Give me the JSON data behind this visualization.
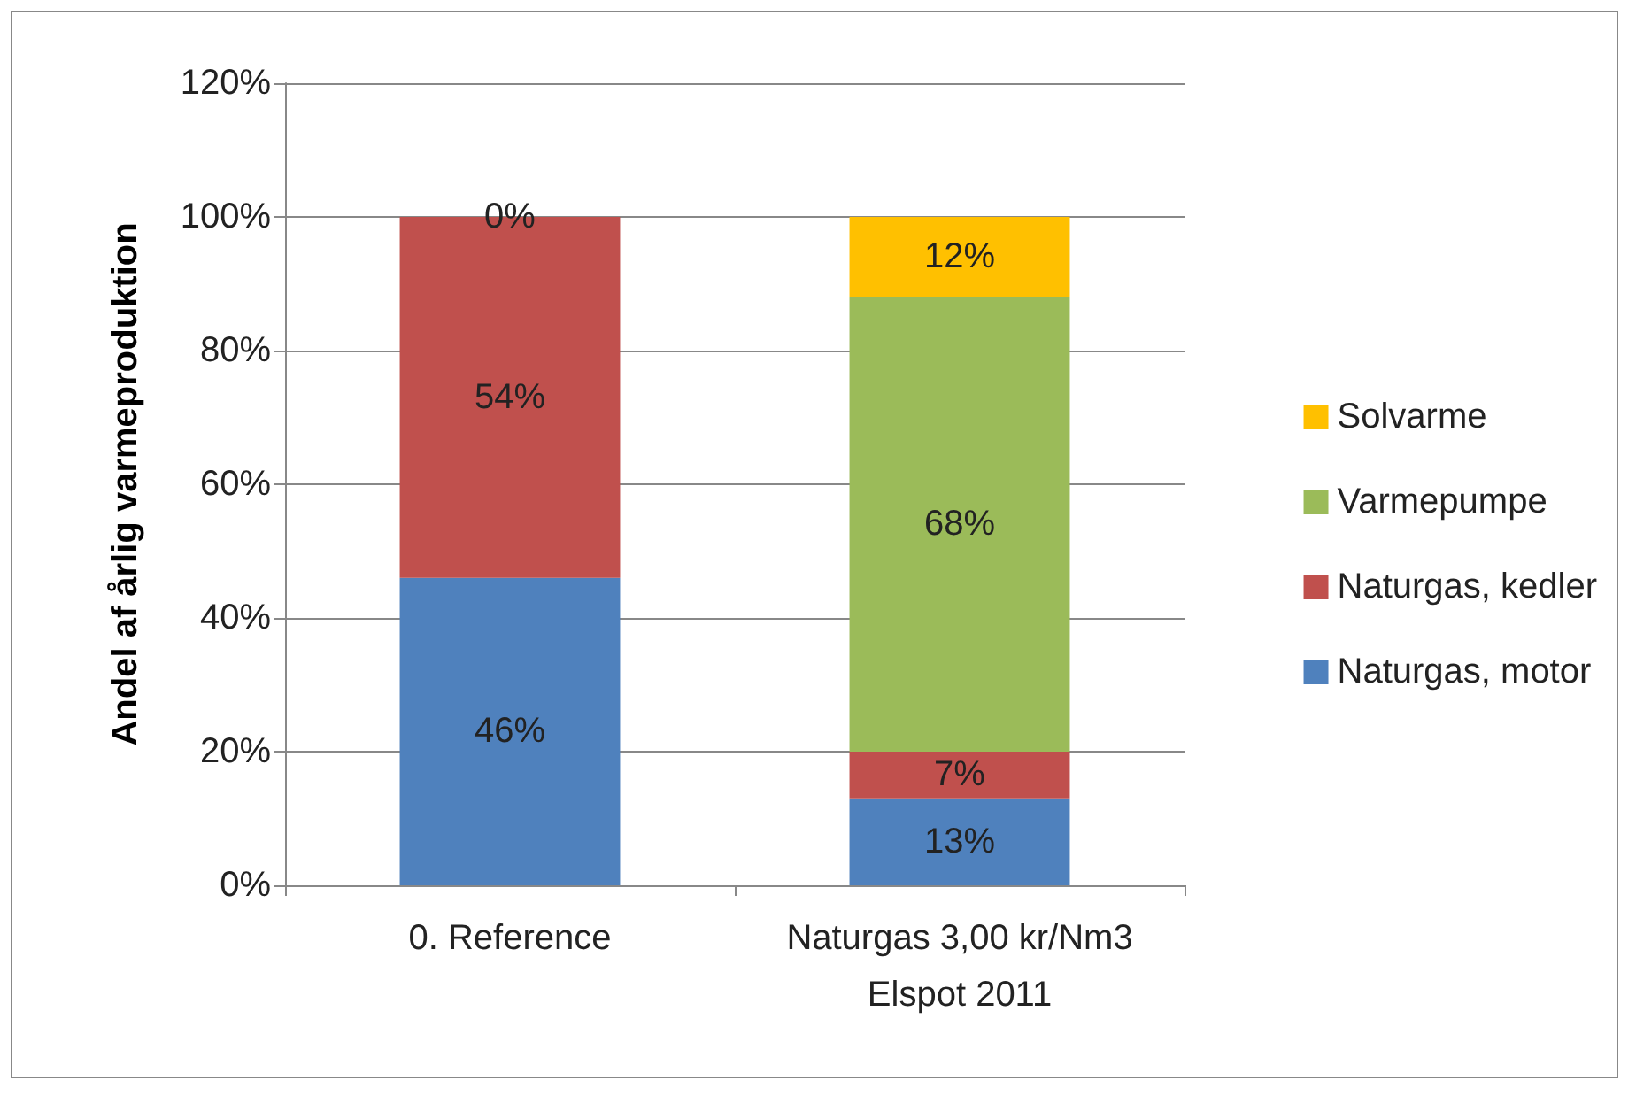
{
  "chart_data": {
    "type": "bar",
    "stacked": true,
    "ylabel": "Andel af årlig varmeproduktion",
    "categories": [
      "0. Reference",
      "Naturgas 3,00 kr/Nm3\nElspot 2011"
    ],
    "series": [
      {
        "name": "Naturgas, motor",
        "color": "#4f81bd",
        "values": [
          46,
          13
        ],
        "value_labels": [
          "46%",
          "13%"
        ]
      },
      {
        "name": "Naturgas, kedler",
        "color": "#c0504d",
        "values": [
          54,
          7
        ],
        "value_labels": [
          "54%",
          "7%"
        ]
      },
      {
        "name": "Varmepumpe",
        "color": "#9bbb59",
        "values": [
          null,
          68
        ],
        "value_labels": [
          null,
          "68%"
        ]
      },
      {
        "name": "Solvarme",
        "color": "#ffc000",
        "values": [
          0,
          12
        ],
        "value_labels": [
          "0%",
          "12%"
        ]
      }
    ],
    "ylim": [
      0,
      120
    ],
    "yticks": [
      {
        "value": 0,
        "label": "0%"
      },
      {
        "value": 20,
        "label": "20%"
      },
      {
        "value": 40,
        "label": "40%"
      },
      {
        "value": 60,
        "label": "60%"
      },
      {
        "value": 80,
        "label": "80%"
      },
      {
        "value": 100,
        "label": "100%"
      },
      {
        "value": 120,
        "label": "120%"
      }
    ],
    "grid": "y",
    "legend": "right"
  }
}
